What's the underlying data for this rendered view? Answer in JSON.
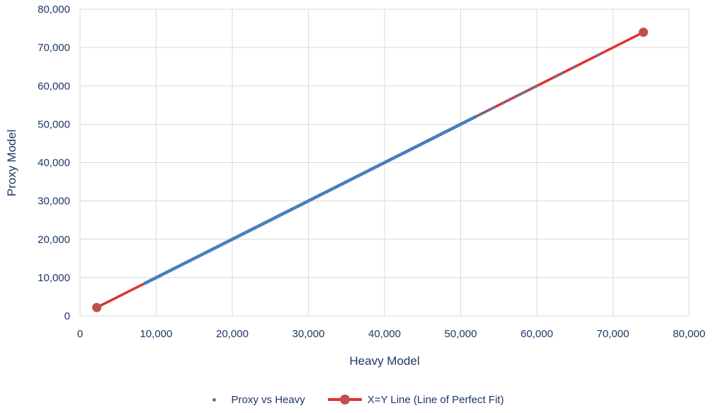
{
  "chart_data": {
    "type": "scatter",
    "title": "",
    "xlabel": "Heavy Model",
    "ylabel": "Proxy Model",
    "xlim": [
      0,
      80000
    ],
    "ylim": [
      0,
      80000
    ],
    "x_ticks": [
      0,
      10000,
      20000,
      30000,
      40000,
      50000,
      60000,
      70000,
      80000
    ],
    "y_ticks": [
      0,
      10000,
      20000,
      30000,
      40000,
      50000,
      60000,
      70000,
      80000
    ],
    "x_tick_labels": [
      "0",
      "10,000",
      "20,000",
      "30,000",
      "40,000",
      "50,000",
      "60,000",
      "70,000",
      "80,000"
    ],
    "y_tick_labels": [
      "0",
      "10,000",
      "20,000",
      "30,000",
      "40,000",
      "50,000",
      "60,000",
      "70,000",
      "80,000"
    ],
    "grid": true,
    "legend_position": "bottom",
    "series": [
      {
        "name": "Proxy vs Heavy",
        "kind": "scatter",
        "color": "#4a7ebb",
        "points": [
          [
            8500,
            8500
          ],
          [
            9000,
            9000
          ],
          [
            9500,
            9500
          ],
          [
            10000,
            10000
          ],
          [
            10500,
            10500
          ],
          [
            11000,
            11000
          ],
          [
            11500,
            11500
          ],
          [
            12000,
            12000
          ],
          [
            12500,
            12500
          ],
          [
            13000,
            13000
          ],
          [
            13500,
            13500
          ],
          [
            14000,
            14000
          ],
          [
            14500,
            14500
          ],
          [
            15000,
            15000
          ],
          [
            15500,
            15500
          ],
          [
            16000,
            16000
          ],
          [
            16500,
            16500
          ],
          [
            17000,
            17000
          ],
          [
            17500,
            17500
          ],
          [
            18000,
            18000
          ],
          [
            18500,
            18500
          ],
          [
            19000,
            19000
          ],
          [
            19500,
            19500
          ],
          [
            20000,
            20000
          ],
          [
            20500,
            20500
          ],
          [
            21000,
            21000
          ],
          [
            21500,
            21500
          ],
          [
            22000,
            22000
          ],
          [
            22500,
            22500
          ],
          [
            23000,
            23000
          ],
          [
            23500,
            23500
          ],
          [
            24000,
            24000
          ],
          [
            24500,
            24500
          ],
          [
            25000,
            25000
          ],
          [
            25500,
            25500
          ],
          [
            26000,
            26000
          ],
          [
            26500,
            26500
          ],
          [
            27000,
            27000
          ],
          [
            27500,
            27500
          ],
          [
            28000,
            28000
          ],
          [
            28500,
            28500
          ],
          [
            29000,
            29000
          ],
          [
            29500,
            29500
          ],
          [
            30000,
            30000
          ],
          [
            30500,
            30500
          ],
          [
            31000,
            31000
          ],
          [
            31500,
            31500
          ],
          [
            32000,
            32000
          ],
          [
            32500,
            32500
          ],
          [
            33000,
            33000
          ],
          [
            33500,
            33500
          ],
          [
            34000,
            34000
          ],
          [
            34500,
            34500
          ],
          [
            35000,
            35000
          ],
          [
            35500,
            35500
          ],
          [
            36000,
            36000
          ],
          [
            36500,
            36500
          ],
          [
            37000,
            37000
          ],
          [
            37500,
            37500
          ],
          [
            38000,
            38000
          ],
          [
            38500,
            38500
          ],
          [
            39000,
            39000
          ],
          [
            39500,
            39500
          ],
          [
            40000,
            40000
          ],
          [
            40500,
            40500
          ],
          [
            41000,
            41000
          ],
          [
            41500,
            41500
          ],
          [
            42000,
            42000
          ],
          [
            42500,
            42500
          ],
          [
            43000,
            43000
          ],
          [
            43500,
            43500
          ],
          [
            44000,
            44000
          ],
          [
            44500,
            44500
          ],
          [
            45000,
            45000
          ],
          [
            45500,
            45500
          ],
          [
            46000,
            46000
          ],
          [
            46500,
            46500
          ],
          [
            47000,
            47000
          ],
          [
            47500,
            47500
          ],
          [
            48000,
            48000
          ],
          [
            48500,
            48500
          ],
          [
            49000,
            49000
          ],
          [
            49500,
            49500
          ],
          [
            50000,
            50000
          ],
          [
            50500,
            50500
          ],
          [
            51000,
            51000
          ],
          [
            51500,
            51500
          ],
          [
            52000,
            52000
          ],
          [
            52600,
            52600
          ],
          [
            53200,
            53200
          ],
          [
            53800,
            53800
          ],
          [
            54400,
            54400
          ],
          [
            55500,
            55500
          ],
          [
            56300,
            56300
          ],
          [
            57200,
            57200
          ],
          [
            57800,
            57800
          ],
          [
            58500,
            58500
          ],
          [
            59200,
            59200
          ],
          [
            59800,
            59800
          ],
          [
            62500,
            62500
          ],
          [
            63300,
            63300
          ],
          [
            64900,
            64900
          ],
          [
            68000,
            68000
          ]
        ]
      },
      {
        "name": "X=Y Line (Line of Perfect Fit)",
        "kind": "line",
        "color": "#e03131",
        "marker_color": "#c0504d",
        "points": [
          [
            2200,
            2200
          ],
          [
            74000,
            74000
          ]
        ]
      }
    ]
  }
}
